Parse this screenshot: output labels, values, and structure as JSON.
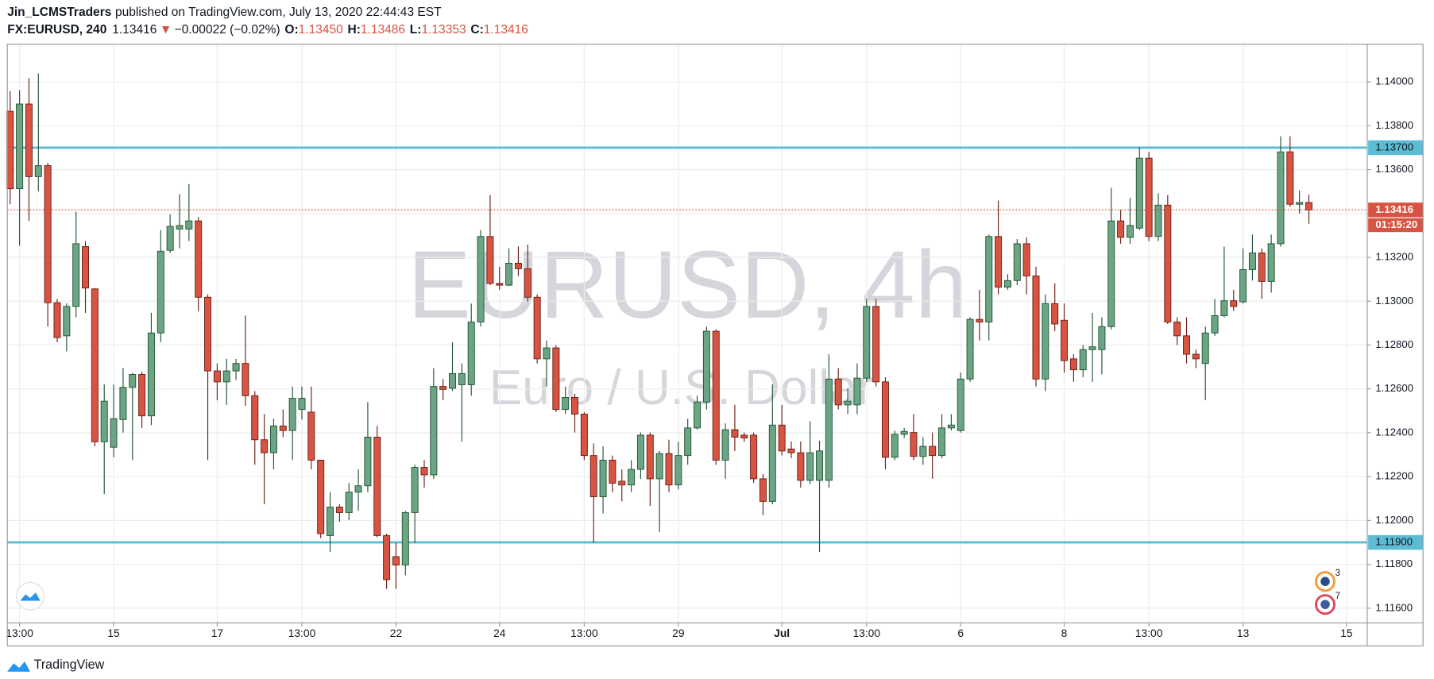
{
  "header": {
    "author": "Jin_LCMSTraders",
    "published": "published on TradingView.com, July 13, 2020 22:44:43 EST",
    "symbol": "FX:EURUSD, 240",
    "last": "1.13416",
    "arrow": "▼",
    "change": "−0.00022 (−0.02%)",
    "ohlc": [
      {
        "label": "O:",
        "value": "1.13450"
      },
      {
        "label": "H:",
        "value": "1.13486"
      },
      {
        "label": "L:",
        "value": "1.13353"
      },
      {
        "label": "C:",
        "value": "1.13416"
      }
    ]
  },
  "chart_data": {
    "type": "candlestick",
    "watermark": "EURUSD, 4h",
    "watermark_sub": "Euro / U.S. Dollar",
    "up_color": "#6ba583",
    "down_color": "#d75442",
    "grid": true,
    "xlim": [
      -0.3,
      144.2
    ],
    "ylim": [
      1.11533,
      1.14172
    ],
    "xticks": [
      {
        "value": 1,
        "label": "13:00"
      },
      {
        "value": 11,
        "label": "15"
      },
      {
        "value": 22,
        "label": "17"
      },
      {
        "value": 31,
        "label": "13:00"
      },
      {
        "value": 41,
        "label": "22"
      },
      {
        "value": 52,
        "label": "24"
      },
      {
        "value": 61,
        "label": "13:00"
      },
      {
        "value": 71,
        "label": "29"
      },
      {
        "value": 82,
        "label": "Jul"
      },
      {
        "value": 91,
        "label": "13:00"
      },
      {
        "value": 101,
        "label": "6"
      },
      {
        "value": 112,
        "label": "8"
      },
      {
        "value": 121,
        "label": "13:00"
      },
      {
        "value": 131,
        "label": "13"
      },
      {
        "value": 142,
        "label": "15"
      }
    ],
    "yticks": [
      {
        "value": 1.116,
        "label": "1.11600"
      },
      {
        "value": 1.118,
        "label": "1.11800"
      },
      {
        "value": 1.12,
        "label": "1.12000"
      },
      {
        "value": 1.122,
        "label": "1.12200"
      },
      {
        "value": 1.124,
        "label": "1.12400"
      },
      {
        "value": 1.126,
        "label": "1.12600"
      },
      {
        "value": 1.128,
        "label": "1.12800"
      },
      {
        "value": 1.13,
        "label": "1.13000"
      },
      {
        "value": 1.132,
        "label": "1.13200"
      },
      {
        "value": 1.134,
        "label": "1.13400"
      },
      {
        "value": 1.136,
        "label": "1.13600"
      },
      {
        "value": 1.138,
        "label": "1.13800"
      },
      {
        "value": 1.14,
        "label": "1.14000"
      }
    ],
    "hlines": [
      {
        "value": 1.137,
        "label": "1.13700",
        "color": "#5bbcd4"
      },
      {
        "value": 1.119,
        "label": "1.11900",
        "color": "#5bbcd4"
      }
    ],
    "price_line": {
      "value": 1.13416,
      "label": "1.13416",
      "countdown": "01:15:20",
      "color": "#d75442"
    },
    "events": [
      "3",
      "7"
    ],
    "open": [
      1.13866,
      1.13513,
      1.13899,
      1.13568,
      1.13618,
      1.12993,
      1.12842,
      1.12976,
      1.13249,
      1.13056,
      1.12359,
      1.12334,
      1.1246,
      1.12607,
      1.12666,
      1.12477,
      1.12855,
      1.13232,
      1.13329,
      1.13329,
      1.13366,
      1.13018,
      1.12682,
      1.12632,
      1.12682,
      1.12716,
      1.12569,
      1.12368,
      1.12309,
      1.12431,
      1.1241,
      1.12506,
      1.12494,
      1.12275,
      1.11931,
      1.12061,
      1.12036,
      1.12129,
      1.12158,
      1.1238,
      1.11931,
      1.11835,
      1.11797,
      1.12036,
      1.12242,
      1.12208,
      1.12611,
      1.12603,
      1.12619,
      1.12619,
      1.12905,
      1.13295,
      1.13081,
      1.13073,
      1.13173,
      1.13148,
      1.13018,
      1.12737,
      1.12787,
      1.12506,
      1.12561,
      1.12485,
      1.12296,
      1.12108,
      1.12275,
      1.12179,
      1.12162,
      1.12233,
      1.12389,
      1.1219,
      1.12305,
      1.12162,
      1.12296,
      1.12422,
      1.1254,
      1.12863,
      1.12275,
      1.12414,
      1.12389,
      1.12389,
      1.1219,
      1.12087,
      1.12435,
      1.12326,
      1.12309,
      1.12183,
      1.12183,
      1.12183,
      1.12645,
      1.12527,
      1.12527,
      1.12649,
      1.12976,
      1.12632,
      1.12288,
      1.12393,
      1.12401,
      1.12292,
      1.12338,
      1.12296,
      1.12422,
      1.1241,
      1.12645,
      1.12917,
      1.12905,
      1.13295,
      1.13064,
      1.13094,
      1.13262,
      1.13115,
      1.12645,
      1.12989,
      1.12913,
      1.12737,
      1.12687,
      1.12779,
      1.12779,
      1.12884,
      1.13366,
      1.13291,
      1.13333,
      1.13652,
      1.13295,
      1.13438,
      1.12905,
      1.12842,
      1.12758,
      1.12716,
      1.12855,
      1.12934,
      1.13002,
      1.12997,
      1.13144,
      1.1322,
      1.1309,
      1.13262,
      1.13681,
      1.13442,
      1.1345
    ],
    "high": [
      1.13958,
      1.13962,
      1.14017,
      1.14038,
      1.1363,
      1.1301,
      1.1299,
      1.13408,
      1.13274,
      1.1306,
      1.1262,
      1.1262,
      1.12695,
      1.12674,
      1.12678,
      1.12947,
      1.13324,
      1.13396,
      1.13488,
      1.13534,
      1.13383,
      1.13031,
      1.12716,
      1.12737,
      1.12737,
      1.12934,
      1.1259,
      1.12485,
      1.12464,
      1.12506,
      1.12611,
      1.12611,
      1.12611,
      1.12275,
      1.12129,
      1.12074,
      1.12171,
      1.12233,
      1.1254,
      1.12431,
      1.1194,
      1.11898,
      1.12044,
      1.12254,
      1.12275,
      1.12695,
      1.12645,
      1.12813,
      1.12716,
      1.12989,
      1.13324,
      1.13484,
      1.13157,
      1.13241,
      1.1325,
      1.13258,
      1.13031,
      1.12821,
      1.128,
      1.12611,
      1.12578,
      1.12494,
      1.12351,
      1.12338,
      1.12296,
      1.12233,
      1.12275,
      1.12401,
      1.12401,
      1.12317,
      1.12368,
      1.12359,
      1.12464,
      1.12569,
      1.12884,
      1.12871,
      1.12443,
      1.12527,
      1.12401,
      1.12401,
      1.12212,
      1.1262,
      1.12527,
      1.1236,
      1.1236,
      1.12452,
      1.12364,
      1.12758,
      1.12695,
      1.12603,
      1.12716,
      1.1301,
      1.1301,
      1.12653,
      1.1241,
      1.12422,
      1.12485,
      1.1238,
      1.12401,
      1.12485,
      1.12485,
      1.12674,
      1.12926,
      1.13052,
      1.13304,
      1.13459,
      1.13123,
      1.13283,
      1.13291,
      1.13157,
      1.13031,
      1.13081,
      1.12989,
      1.12758,
      1.128,
      1.12947,
      1.12926,
      1.13517,
      1.13417,
      1.13471,
      1.13702,
      1.13681,
      1.13492,
      1.13484,
      1.12926,
      1.12926,
      1.12779,
      1.12884,
      1.1301,
      1.13249,
      1.13052,
      1.13241,
      1.13304,
      1.13241,
      1.13304,
      1.13752,
      1.13752,
      1.13505,
      1.13486
    ],
    "low": [
      1.13442,
      1.13253,
      1.13366,
      1.13501,
      1.12884,
      1.12813,
      1.12771,
      1.12926,
      1.12947,
      1.12338,
      1.1212,
      1.12288,
      1.12401,
      1.12275,
      1.12422,
      1.12435,
      1.12813,
      1.1322,
      1.13241,
      1.13274,
      1.12955,
      1.12275,
      1.12548,
      1.12527,
      1.1264,
      1.12523,
      1.12254,
      1.12074,
      1.12233,
      1.1238,
      1.12275,
      1.1246,
      1.12233,
      1.11919,
      1.11856,
      1.11994,
      1.12002,
      1.12044,
      1.12129,
      1.11923,
      1.11688,
      1.11688,
      1.1175,
      1.11898,
      1.1215,
      1.1219,
      1.12548,
      1.1259,
      1.12359,
      1.12569,
      1.12884,
      1.13073,
      1.13052,
      1.13069,
      1.13115,
      1.12997,
      1.12716,
      1.12611,
      1.12494,
      1.12485,
      1.12401,
      1.12275,
      1.11898,
      1.12032,
      1.12129,
      1.12087,
      1.12129,
      1.1219,
      1.12066,
      1.11948,
      1.12129,
      1.12141,
      1.12254,
      1.12414,
      1.12506,
      1.12254,
      1.1219,
      1.12317,
      1.12359,
      1.12171,
      1.12024,
      1.12074,
      1.12296,
      1.12284,
      1.1215,
      1.12166,
      1.11856,
      1.1215,
      1.12506,
      1.12485,
      1.12485,
      1.12632,
      1.12611,
      1.12233,
      1.12275,
      1.12376,
      1.12275,
      1.12254,
      1.1219,
      1.12284,
      1.1241,
      1.12401,
      1.12632,
      1.12821,
      1.12821,
      1.13031,
      1.13052,
      1.13073,
      1.13031,
      1.12611,
      1.1259,
      1.12863,
      1.12674,
      1.12632,
      1.12653,
      1.12632,
      1.12666,
      1.12871,
      1.13262,
      1.13262,
      1.13324,
      1.13274,
      1.13274,
      1.12896,
      1.128,
      1.12716,
      1.12695,
      1.12548,
      1.12842,
      1.12926,
      1.12955,
      1.12989,
      1.13094,
      1.1301,
      1.13039,
      1.13249,
      1.1343,
      1.134,
      1.13353
    ],
    "close": [
      1.13513,
      1.13899,
      1.13568,
      1.13618,
      1.12993,
      1.12834,
      1.12976,
      1.13262,
      1.1306,
      1.12359,
      1.12544,
      1.12464,
      1.12607,
      1.12666,
      1.12477,
      1.12855,
      1.13228,
      1.13341,
      1.13345,
      1.13366,
      1.13018,
      1.12682,
      1.12632,
      1.12682,
      1.12716,
      1.12569,
      1.12368,
      1.12309,
      1.12431,
      1.1241,
      1.12557,
      1.12557,
      1.12275,
      1.1194,
      1.12061,
      1.12036,
      1.12129,
      1.12158,
      1.1238,
      1.11931,
      1.1173,
      1.11797,
      1.12036,
      1.12242,
      1.12208,
      1.12611,
      1.12598,
      1.1267,
      1.1267,
      1.12905,
      1.13295,
      1.13081,
      1.13073,
      1.13173,
      1.13148,
      1.13018,
      1.12737,
      1.12787,
      1.12506,
      1.12561,
      1.12485,
      1.12296,
      1.12108,
      1.12275,
      1.1217,
      1.12162,
      1.12233,
      1.12389,
      1.1219,
      1.12305,
      1.12162,
      1.12296,
      1.12422,
      1.1254,
      1.12863,
      1.12275,
      1.12414,
      1.1238,
      1.12376,
      1.1219,
      1.12087,
      1.12435,
      1.12317,
      1.12309,
      1.12183,
      1.12309,
      1.12317,
      1.12645,
      1.12527,
      1.12544,
      1.12649,
      1.12976,
      1.12632,
      1.12288,
      1.12393,
      1.12406,
      1.12292,
      1.12338,
      1.12296,
      1.12422,
      1.12435,
      1.12645,
      1.12917,
      1.12905,
      1.13295,
      1.13064,
      1.13094,
      1.13262,
      1.13115,
      1.12645,
      1.12989,
      1.12896,
      1.12729,
      1.12687,
      1.12779,
      1.12792,
      1.12884,
      1.13366,
      1.13291,
      1.13345,
      1.13652,
      1.13295,
      1.13438,
      1.12905,
      1.12842,
      1.12758,
      1.12737,
      1.12855,
      1.12934,
      1.13002,
      1.12976,
      1.13144,
      1.1322,
      1.1309,
      1.13262,
      1.13681,
      1.13442,
      1.1345,
      1.13416
    ]
  },
  "footer": {
    "brand": "TradingView"
  }
}
